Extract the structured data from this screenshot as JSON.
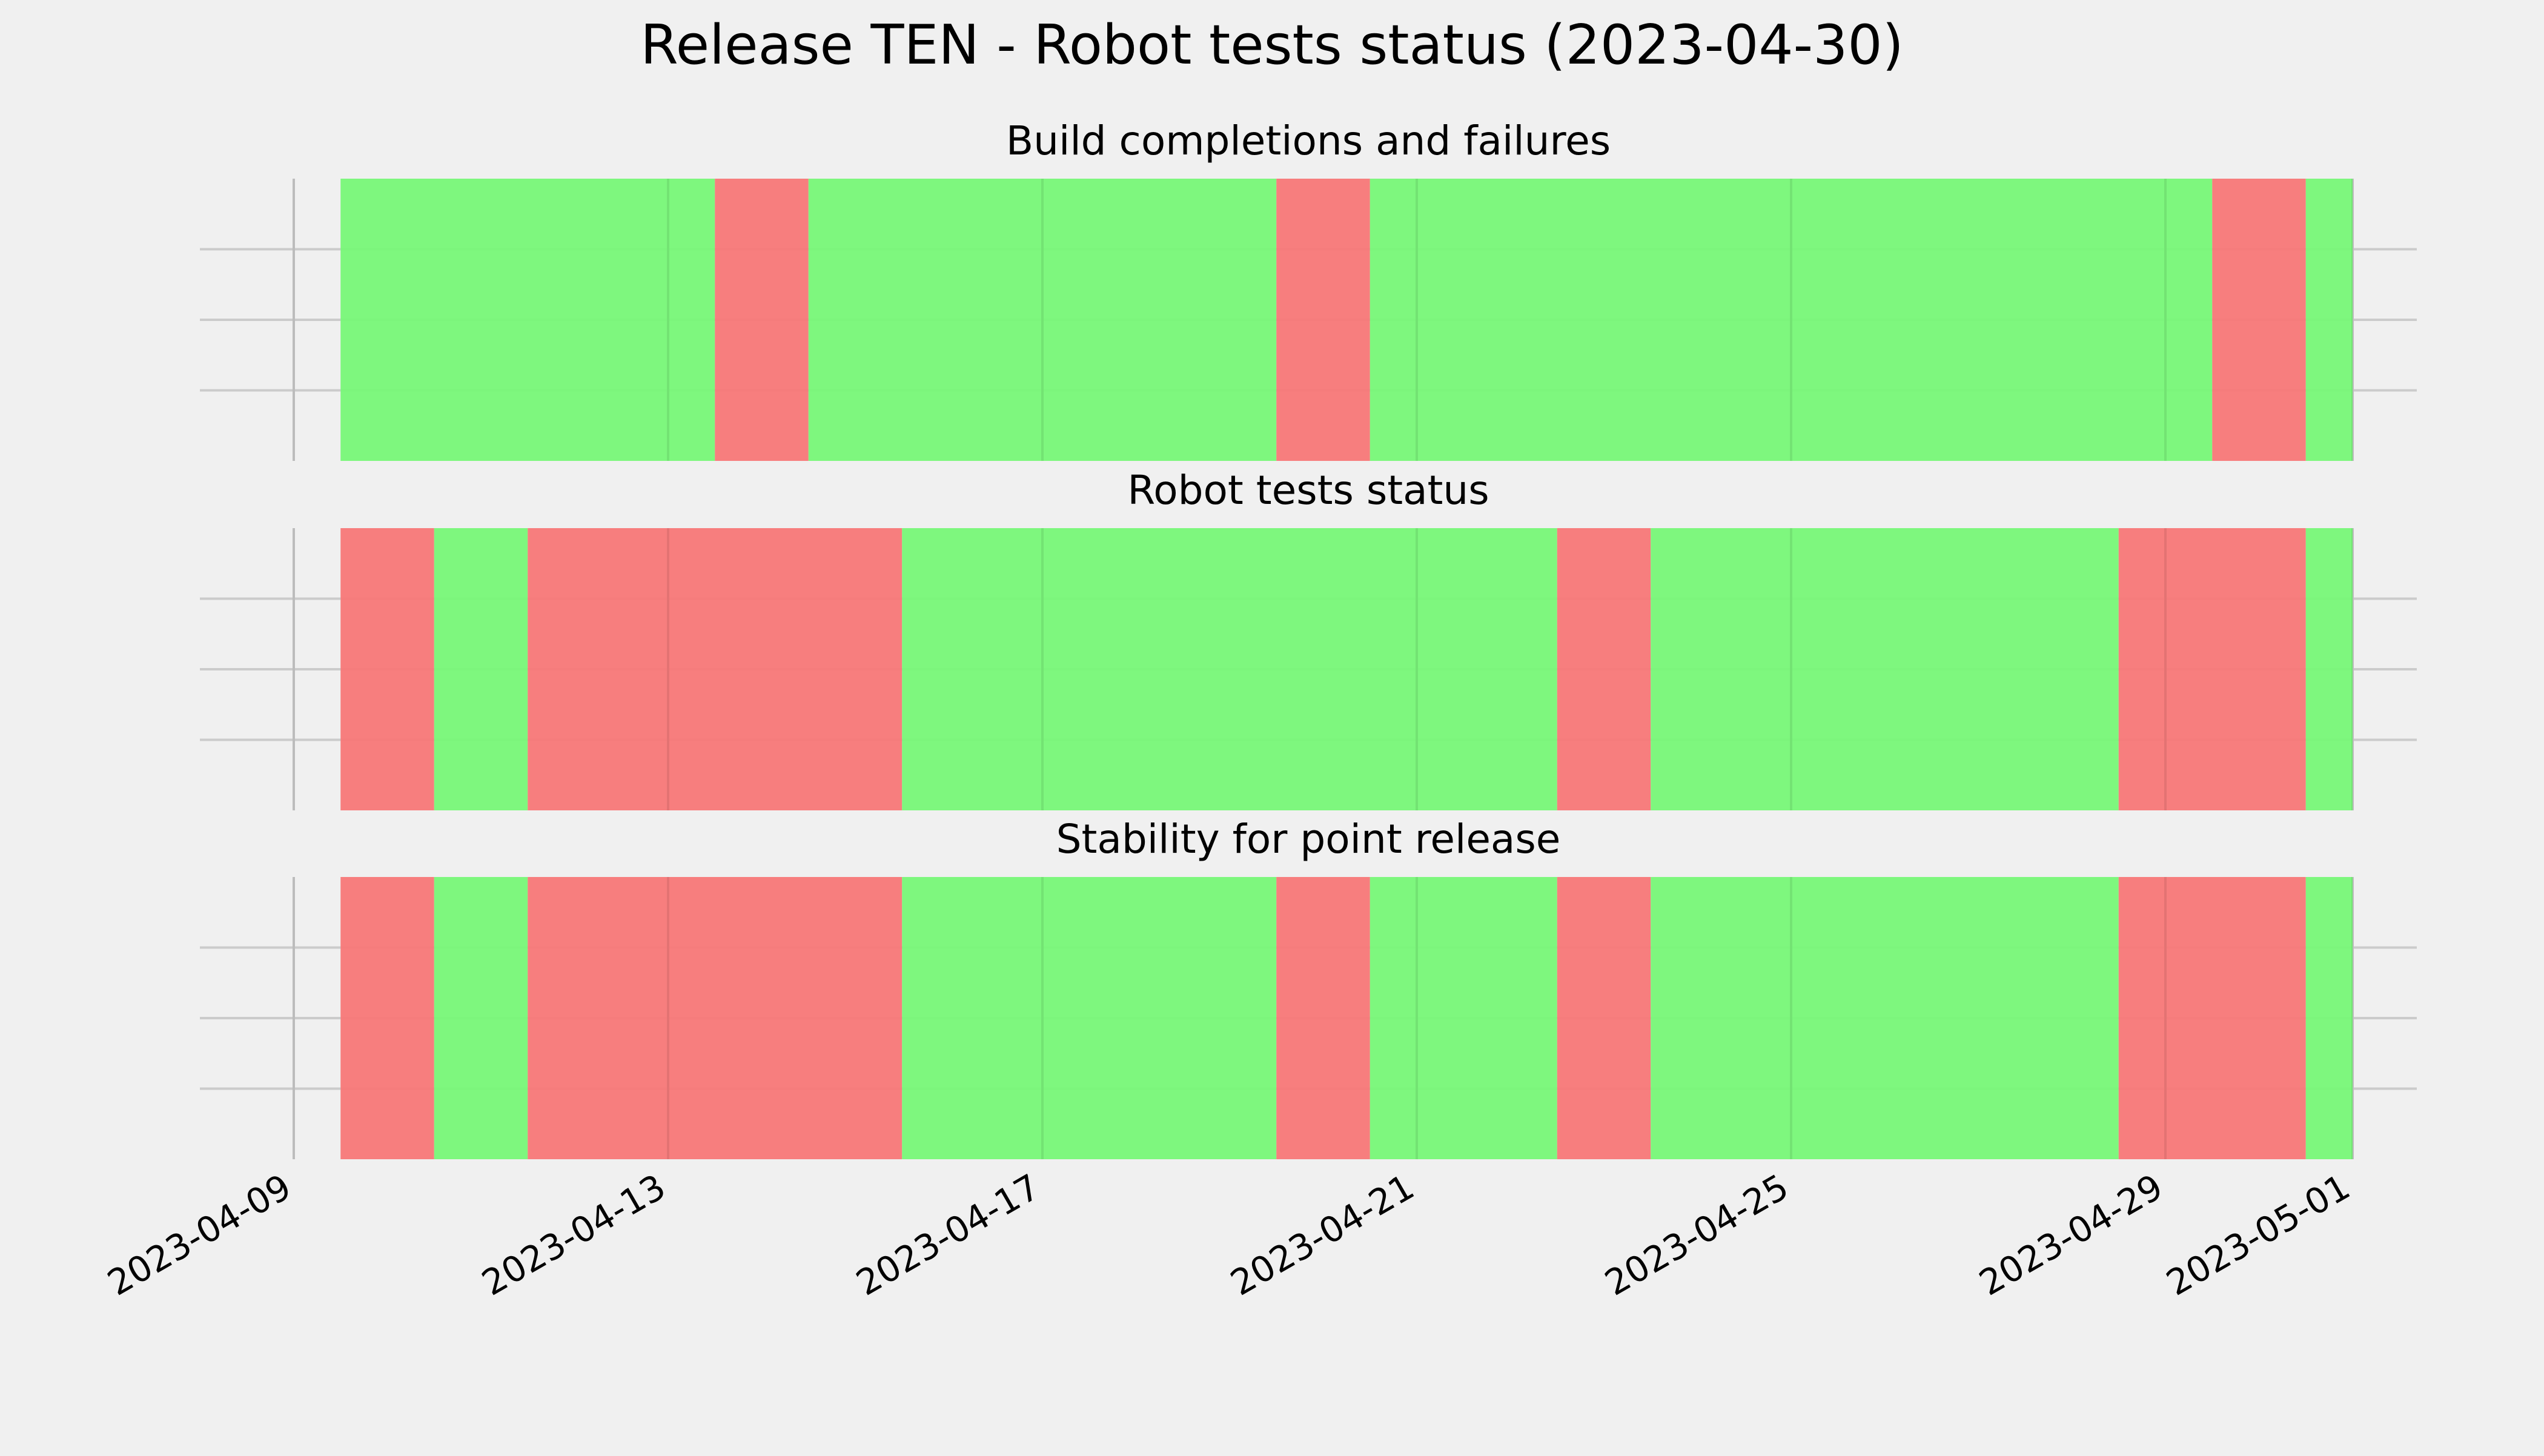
{
  "chart_data": {
    "type": "timeline",
    "title": "Release TEN - Robot tests status (2023-04-30)",
    "xlim": [
      "2023-04-09",
      "2023-05-01"
    ],
    "x_ticks": [
      "2023-04-09",
      "2023-04-13",
      "2023-04-17",
      "2023-04-21",
      "2023-04-25",
      "2023-04-29",
      "2023-05-01"
    ],
    "grid": true,
    "colors": {
      "pass": "#77f777",
      "fail": "#f77777",
      "background": "#f0f0f0",
      "grid": "#cbcbcb"
    },
    "panels": [
      {
        "title": "Build completions and failures",
        "segments": [
          {
            "start": "2023-04-09 12:00",
            "end": "2023-04-13 12:00",
            "status": "pass"
          },
          {
            "start": "2023-04-13 12:00",
            "end": "2023-04-14 12:00",
            "status": "fail"
          },
          {
            "start": "2023-04-14 12:00",
            "end": "2023-04-19 12:00",
            "status": "pass"
          },
          {
            "start": "2023-04-19 12:00",
            "end": "2023-04-20 12:00",
            "status": "fail"
          },
          {
            "start": "2023-04-20 12:00",
            "end": "2023-04-29 12:00",
            "status": "pass"
          },
          {
            "start": "2023-04-29 12:00",
            "end": "2023-04-30 12:00",
            "status": "fail"
          },
          {
            "start": "2023-04-30 12:00",
            "end": "2023-05-01 00:00",
            "status": "pass"
          }
        ]
      },
      {
        "title": "Robot tests status",
        "segments": [
          {
            "start": "2023-04-09 12:00",
            "end": "2023-04-10 12:00",
            "status": "fail"
          },
          {
            "start": "2023-04-10 12:00",
            "end": "2023-04-11 12:00",
            "status": "pass"
          },
          {
            "start": "2023-04-11 12:00",
            "end": "2023-04-15 12:00",
            "status": "fail"
          },
          {
            "start": "2023-04-15 12:00",
            "end": "2023-04-22 12:00",
            "status": "pass"
          },
          {
            "start": "2023-04-22 12:00",
            "end": "2023-04-23 12:00",
            "status": "fail"
          },
          {
            "start": "2023-04-23 12:00",
            "end": "2023-04-28 12:00",
            "status": "pass"
          },
          {
            "start": "2023-04-28 12:00",
            "end": "2023-04-30 12:00",
            "status": "fail"
          },
          {
            "start": "2023-04-30 12:00",
            "end": "2023-05-01 00:00",
            "status": "pass"
          }
        ]
      },
      {
        "title": "Stability for point release",
        "segments": [
          {
            "start": "2023-04-09 12:00",
            "end": "2023-04-10 12:00",
            "status": "fail"
          },
          {
            "start": "2023-04-10 12:00",
            "end": "2023-04-11 12:00",
            "status": "pass"
          },
          {
            "start": "2023-04-11 12:00",
            "end": "2023-04-15 12:00",
            "status": "fail"
          },
          {
            "start": "2023-04-15 12:00",
            "end": "2023-04-19 12:00",
            "status": "pass"
          },
          {
            "start": "2023-04-19 12:00",
            "end": "2023-04-20 12:00",
            "status": "fail"
          },
          {
            "start": "2023-04-20 12:00",
            "end": "2023-04-22 12:00",
            "status": "pass"
          },
          {
            "start": "2023-04-22 12:00",
            "end": "2023-04-23 12:00",
            "status": "fail"
          },
          {
            "start": "2023-04-23 12:00",
            "end": "2023-04-28 12:00",
            "status": "pass"
          },
          {
            "start": "2023-04-28 12:00",
            "end": "2023-04-30 12:00",
            "status": "fail"
          },
          {
            "start": "2023-04-30 12:00",
            "end": "2023-05-01 00:00",
            "status": "pass"
          }
        ]
      }
    ]
  }
}
